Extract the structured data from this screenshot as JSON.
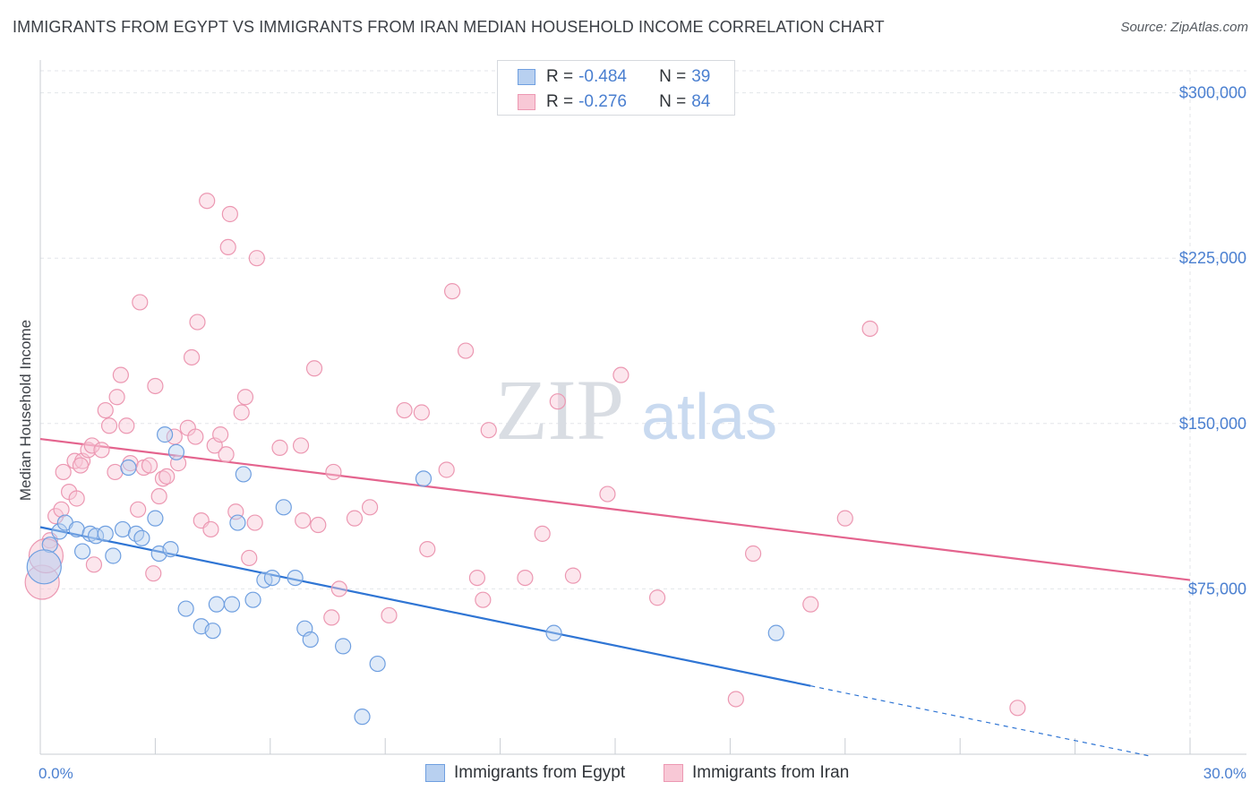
{
  "title": "IMMIGRANTS FROM EGYPT VS IMMIGRANTS FROM IRAN MEDIAN HOUSEHOLD INCOME CORRELATION CHART",
  "source": "Source: ZipAtlas.com",
  "watermark": {
    "zip": "ZIP",
    "atlas": "atlas"
  },
  "legend_top": {
    "egypt": {
      "r_label": "R = ",
      "r_value": "-0.484",
      "n_label": "N = ",
      "n_value": "39"
    },
    "iran": {
      "r_label": "R = ",
      "r_value": "-0.276",
      "n_label": "N = ",
      "n_value": "84"
    }
  },
  "legend_bottom": {
    "egypt": "Immigrants from Egypt",
    "iran": "Immigrants from Iran"
  },
  "colors": {
    "egypt_fill": "#b8d0f0",
    "egypt_stroke": "#6f9fe0",
    "egypt_line": "#2f75d4",
    "iran_fill": "#f8c8d6",
    "iran_stroke": "#ec98b2",
    "iran_line": "#e4648e",
    "tick": "#4a7fd0",
    "grid": "#e3e6ea"
  },
  "chart_data": {
    "type": "scatter",
    "xlabel": "",
    "ylabel": "Median Household Income",
    "xlim": [
      0,
      30
    ],
    "ylim": [
      0,
      310000
    ],
    "x_tick_labels": [
      "0.0%",
      "30.0%"
    ],
    "y_ticks": [
      {
        "value": 75000,
        "label": "$75,000"
      },
      {
        "value": 150000,
        "label": "$150,000"
      },
      {
        "value": 225000,
        "label": "$225,000"
      },
      {
        "value": 300000,
        "label": "$300,000"
      }
    ],
    "series": [
      {
        "name": "Immigrants from Egypt",
        "R": -0.484,
        "N": 39,
        "trend": {
          "x0": 0,
          "y0": 103000,
          "x1": 20.1,
          "y1": 31000,
          "dash_to_x": 29.0,
          "dash_to_y": -1000
        },
        "points": [
          {
            "x": 0.25,
            "y": 95000
          },
          {
            "x": 0.5,
            "y": 101000
          },
          {
            "x": 0.65,
            "y": 105000
          },
          {
            "x": 0.95,
            "y": 102000
          },
          {
            "x": 1.1,
            "y": 92000
          },
          {
            "x": 1.3,
            "y": 100000
          },
          {
            "x": 1.45,
            "y": 99000
          },
          {
            "x": 1.7,
            "y": 100000
          },
          {
            "x": 1.9,
            "y": 90000
          },
          {
            "x": 2.15,
            "y": 102000
          },
          {
            "x": 2.3,
            "y": 130000
          },
          {
            "x": 2.5,
            "y": 100000
          },
          {
            "x": 2.65,
            "y": 98000
          },
          {
            "x": 3.0,
            "y": 107000
          },
          {
            "x": 3.1,
            "y": 91000
          },
          {
            "x": 3.25,
            "y": 145000
          },
          {
            "x": 3.4,
            "y": 93000
          },
          {
            "x": 3.55,
            "y": 137000
          },
          {
            "x": 3.8,
            "y": 66000
          },
          {
            "x": 4.2,
            "y": 58000
          },
          {
            "x": 4.5,
            "y": 56000
          },
          {
            "x": 4.6,
            "y": 68000
          },
          {
            "x": 5.0,
            "y": 68000
          },
          {
            "x": 5.15,
            "y": 105000
          },
          {
            "x": 5.3,
            "y": 127000
          },
          {
            "x": 5.55,
            "y": 70000
          },
          {
            "x": 5.85,
            "y": 79000
          },
          {
            "x": 6.05,
            "y": 80000
          },
          {
            "x": 6.35,
            "y": 112000
          },
          {
            "x": 6.65,
            "y": 80000
          },
          {
            "x": 6.9,
            "y": 57000
          },
          {
            "x": 7.05,
            "y": 52000
          },
          {
            "x": 7.9,
            "y": 49000
          },
          {
            "x": 8.4,
            "y": 17000
          },
          {
            "x": 8.8,
            "y": 41000
          },
          {
            "x": 10.0,
            "y": 125000
          },
          {
            "x": 13.4,
            "y": 55000
          },
          {
            "x": 19.2,
            "y": 55000
          },
          {
            "x": 0.1,
            "y": 85000
          }
        ]
      },
      {
        "name": "Immigrants from Iran",
        "R": -0.276,
        "N": 84,
        "trend": {
          "x0": 0,
          "y0": 143000,
          "x1": 30.0,
          "y1": 79000
        },
        "points": [
          {
            "x": 0.05,
            "y": 78000
          },
          {
            "x": 0.25,
            "y": 97000
          },
          {
            "x": 0.4,
            "y": 108000
          },
          {
            "x": 0.55,
            "y": 111000
          },
          {
            "x": 0.6,
            "y": 128000
          },
          {
            "x": 0.75,
            "y": 119000
          },
          {
            "x": 0.9,
            "y": 133000
          },
          {
            "x": 0.95,
            "y": 116000
          },
          {
            "x": 1.1,
            "y": 133000
          },
          {
            "x": 1.25,
            "y": 138000
          },
          {
            "x": 1.35,
            "y": 140000
          },
          {
            "x": 1.4,
            "y": 86000
          },
          {
            "x": 1.6,
            "y": 138000
          },
          {
            "x": 1.7,
            "y": 156000
          },
          {
            "x": 1.8,
            "y": 149000
          },
          {
            "x": 1.95,
            "y": 128000
          },
          {
            "x": 2.0,
            "y": 162000
          },
          {
            "x": 2.1,
            "y": 172000
          },
          {
            "x": 2.25,
            "y": 149000
          },
          {
            "x": 2.35,
            "y": 132000
          },
          {
            "x": 2.55,
            "y": 111000
          },
          {
            "x": 2.6,
            "y": 205000
          },
          {
            "x": 2.7,
            "y": 130000
          },
          {
            "x": 2.85,
            "y": 131000
          },
          {
            "x": 2.95,
            "y": 82000
          },
          {
            "x": 3.0,
            "y": 167000
          },
          {
            "x": 3.1,
            "y": 117000
          },
          {
            "x": 3.2,
            "y": 125000
          },
          {
            "x": 3.3,
            "y": 126000
          },
          {
            "x": 3.5,
            "y": 144000
          },
          {
            "x": 3.6,
            "y": 132000
          },
          {
            "x": 3.85,
            "y": 148000
          },
          {
            "x": 3.95,
            "y": 180000
          },
          {
            "x": 4.05,
            "y": 144000
          },
          {
            "x": 4.1,
            "y": 196000
          },
          {
            "x": 4.2,
            "y": 106000
          },
          {
            "x": 4.35,
            "y": 251000
          },
          {
            "x": 4.45,
            "y": 102000
          },
          {
            "x": 4.55,
            "y": 140000
          },
          {
            "x": 4.7,
            "y": 145000
          },
          {
            "x": 4.85,
            "y": 136000
          },
          {
            "x": 4.9,
            "y": 230000
          },
          {
            "x": 4.95,
            "y": 245000
          },
          {
            "x": 5.1,
            "y": 110000
          },
          {
            "x": 5.25,
            "y": 155000
          },
          {
            "x": 5.35,
            "y": 162000
          },
          {
            "x": 5.45,
            "y": 89000
          },
          {
            "x": 5.6,
            "y": 105000
          },
          {
            "x": 5.65,
            "y": 225000
          },
          {
            "x": 6.25,
            "y": 139000
          },
          {
            "x": 6.8,
            "y": 140000
          },
          {
            "x": 6.85,
            "y": 106000
          },
          {
            "x": 7.15,
            "y": 175000
          },
          {
            "x": 7.25,
            "y": 104000
          },
          {
            "x": 7.6,
            "y": 62000
          },
          {
            "x": 7.65,
            "y": 128000
          },
          {
            "x": 7.8,
            "y": 75000
          },
          {
            "x": 8.2,
            "y": 107000
          },
          {
            "x": 8.6,
            "y": 112000
          },
          {
            "x": 9.1,
            "y": 63000
          },
          {
            "x": 9.5,
            "y": 156000
          },
          {
            "x": 9.95,
            "y": 155000
          },
          {
            "x": 10.1,
            "y": 93000
          },
          {
            "x": 10.6,
            "y": 129000
          },
          {
            "x": 10.75,
            "y": 210000
          },
          {
            "x": 11.1,
            "y": 183000
          },
          {
            "x": 11.4,
            "y": 80000
          },
          {
            "x": 11.55,
            "y": 70000
          },
          {
            "x": 11.7,
            "y": 147000
          },
          {
            "x": 12.65,
            "y": 80000
          },
          {
            "x": 13.1,
            "y": 100000
          },
          {
            "x": 13.5,
            "y": 160000
          },
          {
            "x": 13.9,
            "y": 81000
          },
          {
            "x": 14.8,
            "y": 118000
          },
          {
            "x": 15.15,
            "y": 172000
          },
          {
            "x": 16.1,
            "y": 71000
          },
          {
            "x": 18.15,
            "y": 25000
          },
          {
            "x": 18.6,
            "y": 91000
          },
          {
            "x": 20.1,
            "y": 68000
          },
          {
            "x": 21.0,
            "y": 107000
          },
          {
            "x": 21.65,
            "y": 193000
          },
          {
            "x": 25.5,
            "y": 21000
          },
          {
            "x": 0.15,
            "y": 90000
          },
          {
            "x": 1.05,
            "y": 131000
          }
        ]
      }
    ]
  }
}
